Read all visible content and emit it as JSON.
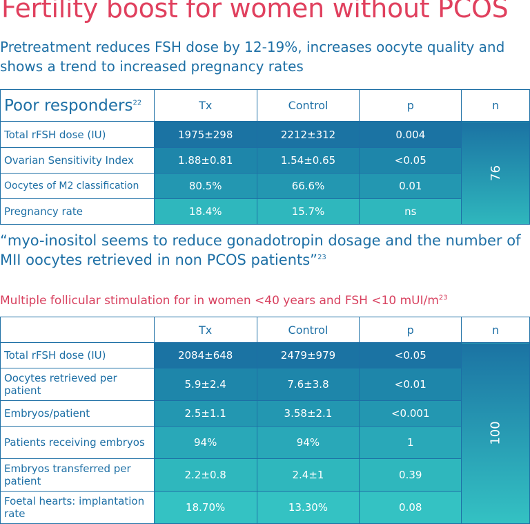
{
  "title": "Fertility boost for women without PCOS",
  "subtitle": "Pretreatment reduces FSH dose by 12-19%, increases oocyte quality and shows a trend to increased pregnancy rates",
  "table1": {
    "header": {
      "label": "Poor responders",
      "label_sup": "22",
      "tx": "Tx",
      "control": "Control",
      "p": "p",
      "n": "n"
    },
    "n_value": "76",
    "rows": [
      {
        "label": "Total rFSH dose (IU)",
        "tx": "1975±298",
        "control": "2212±312",
        "p": "0.004"
      },
      {
        "label": "Ovarian Sensitivity Index",
        "tx": "1.88±0.81",
        "control": "1.54±0.65",
        "p": "<0.05"
      },
      {
        "label": "Oocytes of M2 classification",
        "tx": "80.5%",
        "control": "66.6%",
        "p": "0.01"
      },
      {
        "label": "Pregnancy rate",
        "tx": "18.4%",
        "control": "15.7%",
        "p": "ns"
      }
    ]
  },
  "quote": {
    "text": "“myo-inositol seems to reduce gonadotropin dosage and the number of MII oocytes retrieved in non PCOS patients”",
    "sup": "23"
  },
  "section2": {
    "title": "Multiple follicular stimulation for in women <40 years and FSH <10 mUI/m",
    "sup": "23"
  },
  "table2": {
    "header": {
      "label": "",
      "tx": "Tx",
      "control": "Control",
      "p": "p",
      "n": "n"
    },
    "n_value": "100",
    "rows": [
      {
        "label": "Total rFSH dose (IU)",
        "tx": "2084±648",
        "control": "2479±979",
        "p": "<0.05"
      },
      {
        "label": "Oocytes retrieved per patient",
        "tx": "5.9±2.4",
        "control": "7.6±3.8",
        "p": "<0.01"
      },
      {
        "label": "Embryos/patient",
        "tx": "2.5±1.1",
        "control": "3.58±2.1",
        "p": "<0.001"
      },
      {
        "label": "Patients receiving embryos",
        "tx": "94%",
        "control": "94%",
        "p": "1"
      },
      {
        "label": "Embryos transferred per patient",
        "tx": "2.2±0.8",
        "control": "2.4±1",
        "p": "0.39"
      },
      {
        "label": "Foetal hearts: implantation rate",
        "tx": "18.70%",
        "control": "13.30%",
        "p": "0.08"
      }
    ]
  },
  "colors": {
    "title": "#e0405e",
    "text_blue": "#1d6fa5",
    "cell_dark": "#1b73a3",
    "cell_light": "#34c2c3"
  }
}
